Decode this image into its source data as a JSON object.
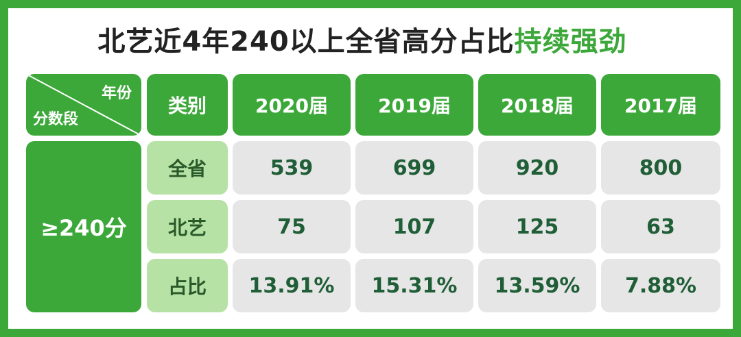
{
  "title": {
    "main": "北艺近4年240以上全省高分占比",
    "highlight": "持续强劲"
  },
  "corner": {
    "top_label": "年份",
    "bottom_label": "分数段"
  },
  "header": {
    "category": "类别",
    "years": [
      "2020届",
      "2019届",
      "2018届",
      "2017届"
    ]
  },
  "row_group": "≥240分",
  "rows": [
    {
      "label": "全省",
      "values": [
        "539",
        "699",
        "920",
        "800"
      ]
    },
    {
      "label": "北艺",
      "values": [
        "75",
        "107",
        "125",
        "63"
      ]
    },
    {
      "label": "占比",
      "values": [
        "13.91%",
        "15.31%",
        "13.59%",
        "7.88%"
      ]
    }
  ],
  "colors": {
    "accent": "#3da83a",
    "category_bg": "#b6e2a6",
    "value_bg": "#e6e6e6",
    "value_text": "#1f5e36"
  }
}
